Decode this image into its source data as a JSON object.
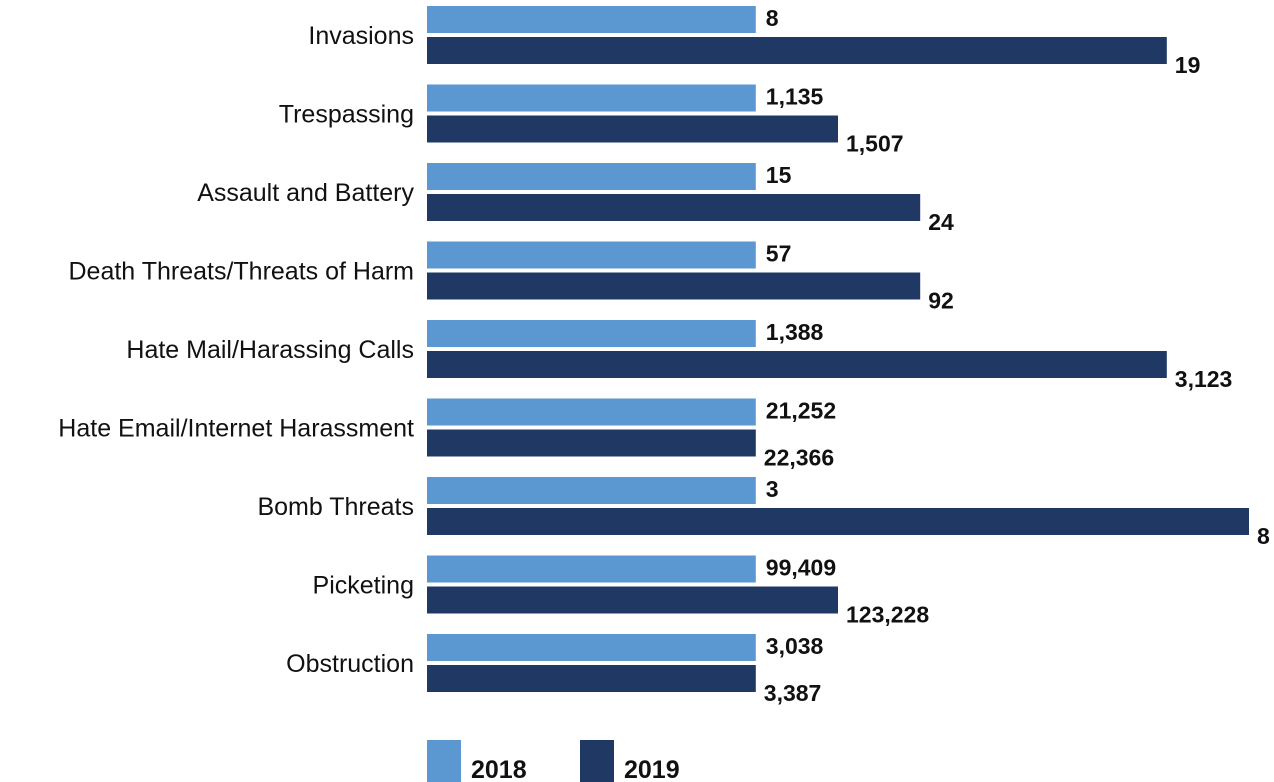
{
  "chart_data": {
    "type": "bar",
    "orientation": "horizontal",
    "categories": [
      "Invasions",
      "Trespassing",
      "Assault and Battery",
      "Death Threats/Threats of Harm",
      "Hate Mail/Harassing Calls",
      "Hate Email/Internet Harassment",
      "Bomb Threats",
      "Picketing",
      "Obstruction"
    ],
    "series": [
      {
        "name": "2018",
        "color": "#5b97d1",
        "values": [
          8,
          1135,
          15,
          57,
          1388,
          21252,
          3,
          99409,
          3038
        ],
        "labels": [
          "8",
          "1,135",
          "15",
          "57",
          "1,388",
          "21,252",
          "3",
          "99,409",
          "3,038"
        ],
        "bar_fraction": [
          0.4,
          0.4,
          0.4,
          0.4,
          0.4,
          0.4,
          0.4,
          0.4,
          0.4
        ]
      },
      {
        "name": "2019",
        "color": "#1f3864",
        "values": [
          19,
          1507,
          24,
          92,
          3123,
          22366,
          8,
          123228,
          3387
        ],
        "labels": [
          "19",
          "1,507",
          "24",
          "92",
          "3,123",
          "22,366",
          "8",
          "123,228",
          "3,387"
        ],
        "bar_fraction": [
          0.9,
          0.5,
          0.6,
          0.6,
          0.9,
          0.4,
          1.0,
          0.5,
          0.4
        ]
      }
    ],
    "title": "",
    "xlabel": "",
    "ylabel": "",
    "legend_position": "bottom",
    "grid": false
  }
}
